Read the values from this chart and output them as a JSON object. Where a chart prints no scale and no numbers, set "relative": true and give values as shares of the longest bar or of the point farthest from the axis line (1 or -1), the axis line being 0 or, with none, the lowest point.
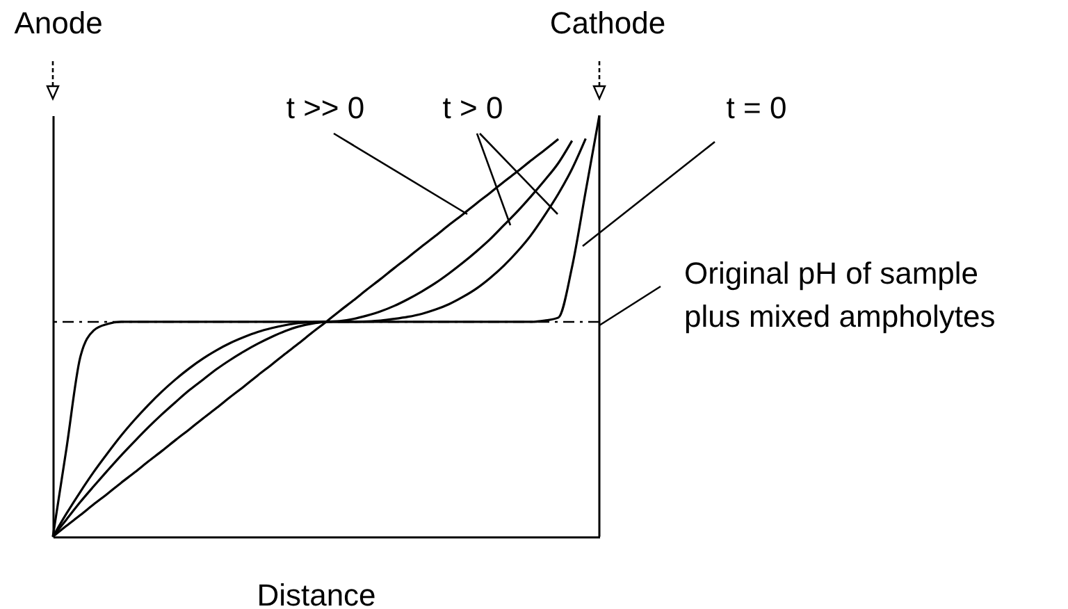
{
  "chart_data": {
    "type": "line",
    "relative": true,
    "xlabel": "Distance",
    "legend": false,
    "marker": "none",
    "line_style": "solid",
    "categories": [
      null,
      null,
      null,
      null,
      null,
      null,
      null,
      null,
      null,
      null,
      null,
      null,
      null,
      null,
      null,
      null,
      null,
      null,
      null,
      null,
      null,
      null,
      null,
      null,
      null,
      null,
      null,
      null,
      null,
      null,
      null,
      null,
      null,
      null,
      null,
      null,
      null,
      null,
      null,
      null,
      null
    ],
    "series": [
      {
        "name": "t >> 0",
        "color": "#000000",
        "values": [
          0,
          0.026,
          0.051,
          0.077,
          0.102,
          0.128,
          0.153,
          0.179,
          0.204,
          0.23,
          0.255,
          0.281,
          0.306,
          0.332,
          0.357,
          0.383,
          0.408,
          0.434,
          0.459,
          0.485,
          0.51,
          0.536,
          0.561,
          0.587,
          0.612,
          0.638,
          0.663,
          0.689,
          0.714,
          0.74,
          0.765,
          0.791,
          0.816,
          0.842,
          0.867,
          0.893,
          0.918,
          0.944,
          null,
          null,
          null
        ]
      },
      {
        "name": "t > 0",
        "color": "#000000",
        "values": [
          0,
          0.041,
          0.082,
          0.12,
          0.157,
          0.193,
          0.227,
          0.26,
          0.291,
          0.32,
          0.348,
          0.373,
          0.398,
          0.42,
          0.44,
          0.458,
          0.474,
          0.488,
          0.499,
          0.506,
          0.51,
          0.512,
          0.517,
          0.525,
          0.535,
          0.548,
          0.564,
          0.582,
          0.602,
          0.625,
          0.65,
          0.677,
          0.706,
          0.739,
          0.772,
          0.808,
          0.846,
          0.887,
          0.94,
          null,
          null
        ]
      },
      {
        "color": "#000000",
        "values": [
          0,
          0.055,
          0.106,
          0.154,
          0.198,
          0.24,
          0.278,
          0.313,
          0.345,
          0.374,
          0.4,
          0.423,
          0.443,
          0.46,
          0.474,
          0.486,
          0.495,
          0.502,
          0.507,
          0.509,
          0.51,
          0.51,
          0.51,
          0.511,
          0.513,
          0.517,
          0.522,
          0.529,
          0.539,
          0.552,
          0.569,
          0.589,
          0.614,
          0.643,
          0.677,
          0.716,
          0.763,
          0.814,
          0.873,
          0.945,
          null
        ]
      },
      {
        "name": "t = 0",
        "color": "#000000",
        "values": [
          0,
          0.21,
          0.425,
          0.49,
          0.505,
          0.51,
          0.51,
          0.51,
          0.51,
          0.51,
          0.51,
          0.51,
          0.51,
          0.51,
          0.51,
          0.51,
          0.51,
          0.51,
          0.51,
          0.51,
          0.51,
          0.51,
          0.51,
          0.51,
          0.51,
          0.51,
          0.51,
          0.51,
          0.51,
          0.51,
          0.51,
          0.51,
          0.51,
          0.51,
          0.51,
          0.51,
          0.513,
          0.52,
          0.64,
          0.82,
          1
        ]
      }
    ],
    "ref_lines": [
      {
        "axis": "y",
        "value": 0.51,
        "line_style": "dashed",
        "color": "#000000"
      }
    ],
    "annotations": [
      "Anode",
      "Cathode",
      "Original pH of sample\nplus mixed ampholytes"
    ]
  }
}
